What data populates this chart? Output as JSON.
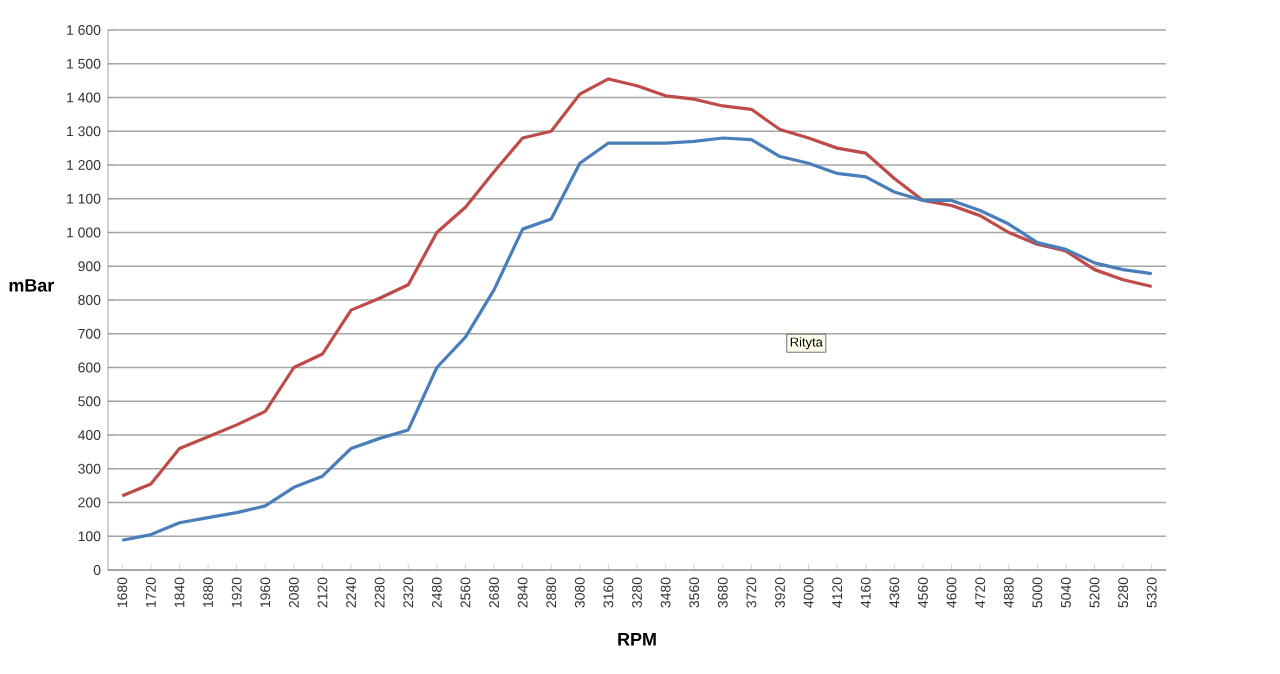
{
  "chart_data": {
    "type": "line",
    "xlabel": "RPM",
    "ylabel": "mBar",
    "categories": [
      "1680",
      "1720",
      "1840",
      "1880",
      "1920",
      "1960",
      "2080",
      "2120",
      "2240",
      "2280",
      "2320",
      "2480",
      "2560",
      "2680",
      "2840",
      "2880",
      "3080",
      "3160",
      "3280",
      "3480",
      "3560",
      "3680",
      "3720",
      "3920",
      "4000",
      "4120",
      "4160",
      "4360",
      "4560",
      "4600",
      "4720",
      "4880",
      "5000",
      "5040",
      "5200",
      "5280",
      "5320"
    ],
    "series": [
      {
        "color": "#be4b48",
        "values": [
          220,
          255,
          360,
          395,
          430,
          470,
          600,
          640,
          770,
          805,
          845,
          1000,
          1075,
          1180,
          1280,
          1300,
          1410,
          1455,
          1435,
          1405,
          1395,
          1375,
          1365,
          1305,
          1280,
          1250,
          1235,
          1160,
          1095,
          1080,
          1050,
          1000,
          965,
          945,
          890,
          860,
          840
        ]
      },
      {
        "color": "#4a7ebb",
        "values": [
          88,
          105,
          140,
          155,
          170,
          190,
          245,
          278,
          360,
          390,
          415,
          600,
          690,
          830,
          1010,
          1040,
          1205,
          1265,
          1265,
          1265,
          1270,
          1280,
          1275,
          1225,
          1205,
          1175,
          1165,
          1120,
          1095,
          1095,
          1065,
          1025,
          970,
          950,
          910,
          890,
          878
        ]
      }
    ],
    "ylim": [
      0,
      1600
    ],
    "yticks": [
      0,
      100,
      200,
      300,
      400,
      500,
      600,
      700,
      800,
      900,
      {
        "value": 1000,
        "label": "1 000"
      },
      {
        "value": 1100,
        "label": "1 100"
      },
      {
        "value": 1200,
        "label": "1 200"
      },
      {
        "value": 1300,
        "label": "1 300"
      },
      {
        "value": 1400,
        "label": "1 400"
      },
      {
        "value": 1500,
        "label": "1 500"
      },
      {
        "value": 1600,
        "label": "1 600"
      }
    ],
    "grid": "y",
    "marker": "none",
    "line_style": "solid",
    "annotations": [
      "Rityta"
    ]
  }
}
